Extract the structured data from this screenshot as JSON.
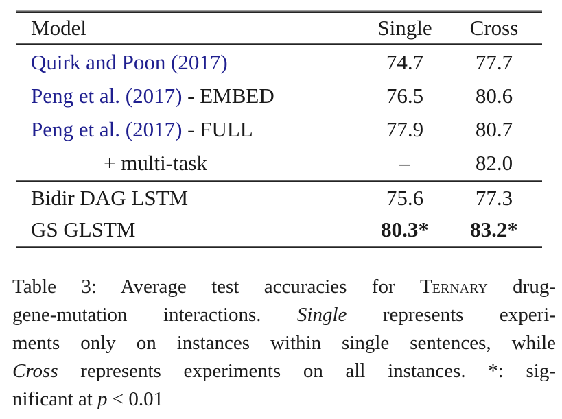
{
  "table": {
    "headers": {
      "model": "Model",
      "single": "Single",
      "cross": "Cross"
    },
    "rows": [
      {
        "cite": "Quirk and Poon (2017)",
        "suffix": "",
        "single": "74.7",
        "cross": "77.7"
      },
      {
        "cite": "Peng et al. (2017)",
        "suffix": " - EMBED",
        "single": "76.5",
        "cross": "80.6"
      },
      {
        "cite": "Peng et al. (2017)",
        "suffix": " - FULL",
        "single": "77.9",
        "cross": "80.7"
      },
      {
        "cite": "",
        "suffix": "+ multi-task",
        "single": "–",
        "cross": "82.0"
      },
      {
        "cite": "",
        "suffix": "Bidir DAG LSTM",
        "single": "75.6",
        "cross": "77.3"
      },
      {
        "cite": "",
        "suffix": "GS GLSTM",
        "single": "80.3*",
        "cross": "83.2*"
      }
    ]
  },
  "caption": {
    "l1a": "Table 3: Average test accuracies for ",
    "l1b": "Ternary",
    "l1c": " drug-",
    "l2a": "gene-mutation interactions. ",
    "l2b": "Single",
    "l2c": " represents experi-",
    "l3": "ments only on instances within single sentences, while",
    "l4a": "Cross",
    "l4b": " represents experiments on all instances. *: sig-",
    "l5a": "nificant at ",
    "l5b": "p",
    "l5c": " < 0.01"
  },
  "colors": {
    "citation_blue": "#1f1f8f",
    "text": "#1a1a1a",
    "rule_dark": "#242424",
    "rule_light": "#9c9c9c",
    "background": "#ffffff"
  }
}
